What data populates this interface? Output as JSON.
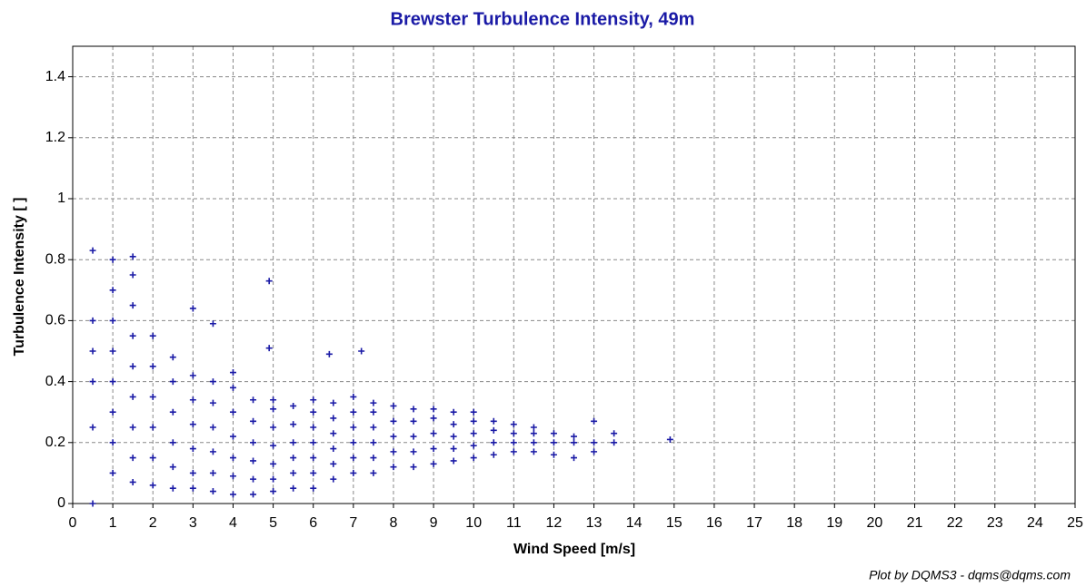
{
  "chart_data": {
    "type": "scatter",
    "title": "Brewster Turbulence Intensity, 49m",
    "x_label": "Wind Speed [m/s]",
    "y_label": "Turbulence Intensity [ ]",
    "credit": "Plot by DQMS3 - dqms@dqms.com",
    "color": "#1a1aa6",
    "grid": true,
    "xlim": [
      0,
      25
    ],
    "ylim": [
      0,
      1.5
    ],
    "xticks": [
      0,
      1,
      2,
      3,
      4,
      5,
      6,
      7,
      8,
      9,
      10,
      11,
      12,
      13,
      14,
      15,
      16,
      17,
      18,
      19,
      20,
      21,
      22,
      23,
      24,
      25
    ],
    "yticks": [
      0,
      0.2,
      0.4,
      0.6,
      0.8,
      1,
      1.2,
      1.4
    ],
    "x": [
      0.5,
      0.5,
      0.5,
      0.5,
      0.5,
      1.0,
      1.0,
      1.0,
      1.0,
      1.0,
      1.0,
      1.0,
      1.0,
      1.5,
      1.5,
      1.5,
      1.5,
      1.5,
      1.5,
      1.5,
      1.5,
      1.5,
      2.0,
      2.0,
      2.0,
      2.0,
      2.0,
      2.0,
      2.5,
      2.5,
      2.5,
      2.5,
      2.5,
      2.5,
      3.0,
      3.0,
      3.0,
      3.0,
      3.0,
      3.0,
      3.0,
      3.5,
      3.5,
      3.5,
      3.5,
      3.5,
      3.5,
      3.5,
      4.0,
      4.0,
      4.0,
      4.0,
      4.0,
      4.0,
      4.0,
      4.5,
      4.5,
      4.5,
      4.5,
      4.5,
      4.5,
      5.0,
      5.0,
      5.0,
      5.0,
      5.0,
      5.0,
      5.0,
      5.5,
      5.5,
      5.5,
      5.5,
      5.5,
      5.5,
      6.0,
      6.0,
      6.0,
      6.0,
      6.0,
      6.0,
      6.0,
      6.5,
      6.5,
      6.5,
      6.5,
      6.5,
      6.5,
      7.0,
      7.0,
      7.0,
      7.0,
      7.0,
      7.0,
      7.5,
      7.5,
      7.5,
      7.5,
      7.5,
      7.5,
      8.0,
      8.0,
      8.0,
      8.0,
      8.0,
      8.5,
      8.5,
      8.5,
      8.5,
      8.5,
      9.0,
      9.0,
      9.0,
      9.0,
      9.0,
      9.5,
      9.5,
      9.5,
      9.5,
      9.5,
      10.0,
      10.0,
      10.0,
      10.0,
      10.0,
      10.5,
      10.5,
      10.5,
      10.5,
      11.0,
      11.0,
      11.0,
      11.0,
      11.5,
      11.5,
      11.5,
      11.5,
      12.0,
      12.0,
      12.0,
      12.5,
      12.5,
      12.5,
      13.0,
      13.0,
      13.0,
      13.5,
      13.5,
      14.9,
      4.9,
      4.9,
      6.4,
      7.2,
      0.5
    ],
    "values": [
      0.25,
      0.4,
      0.5,
      0.6,
      0.83,
      0.1,
      0.2,
      0.3,
      0.4,
      0.5,
      0.6,
      0.7,
      0.8,
      0.07,
      0.15,
      0.25,
      0.35,
      0.45,
      0.55,
      0.65,
      0.75,
      0.81,
      0.06,
      0.15,
      0.25,
      0.35,
      0.45,
      0.55,
      0.05,
      0.12,
      0.2,
      0.3,
      0.4,
      0.48,
      0.05,
      0.1,
      0.18,
      0.26,
      0.34,
      0.42,
      0.64,
      0.04,
      0.1,
      0.17,
      0.25,
      0.33,
      0.4,
      0.59,
      0.03,
      0.09,
      0.15,
      0.22,
      0.3,
      0.38,
      0.43,
      0.03,
      0.08,
      0.14,
      0.2,
      0.27,
      0.34,
      0.04,
      0.08,
      0.13,
      0.19,
      0.25,
      0.31,
      0.34,
      0.05,
      0.1,
      0.15,
      0.2,
      0.26,
      0.32,
      0.05,
      0.1,
      0.15,
      0.2,
      0.25,
      0.3,
      0.34,
      0.08,
      0.13,
      0.18,
      0.23,
      0.28,
      0.33,
      0.1,
      0.15,
      0.2,
      0.25,
      0.3,
      0.35,
      0.1,
      0.15,
      0.2,
      0.25,
      0.3,
      0.33,
      0.12,
      0.17,
      0.22,
      0.27,
      0.32,
      0.12,
      0.17,
      0.22,
      0.27,
      0.31,
      0.13,
      0.18,
      0.23,
      0.28,
      0.31,
      0.14,
      0.18,
      0.22,
      0.26,
      0.3,
      0.15,
      0.19,
      0.23,
      0.27,
      0.3,
      0.16,
      0.2,
      0.24,
      0.27,
      0.17,
      0.2,
      0.23,
      0.26,
      0.17,
      0.2,
      0.23,
      0.25,
      0.2,
      0.23,
      0.16,
      0.15,
      0.2,
      0.22,
      0.2,
      0.27,
      0.17,
      0.2,
      0.23,
      0.21,
      0.73,
      0.51,
      0.49,
      0.5,
      0.0
    ]
  }
}
